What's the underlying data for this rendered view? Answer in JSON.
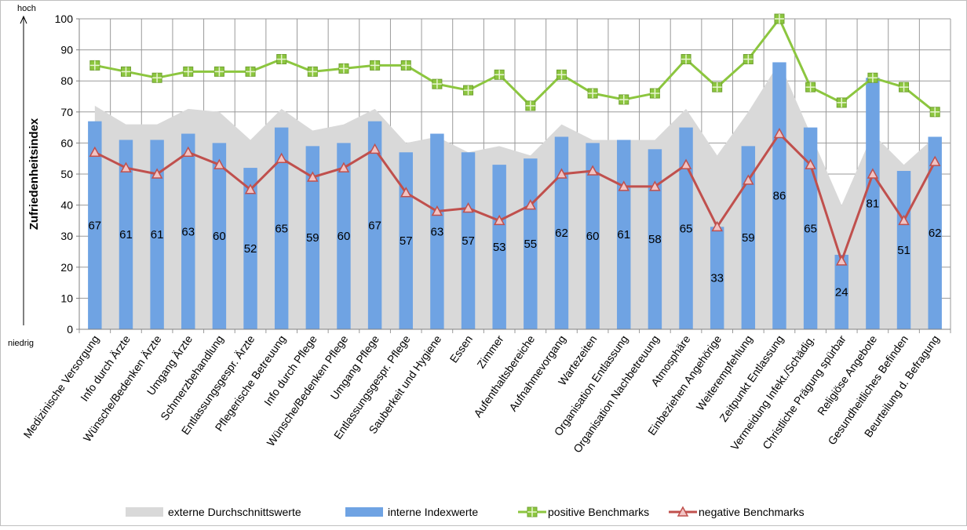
{
  "chart_data": {
    "type": "bar",
    "y_label": "Zufriedenheitsindex",
    "axis_top_label": "hoch",
    "axis_bottom_label": "niedrig",
    "categories": [
      "Medizinische Versorgung",
      "Info durch Ärzte",
      "Wünsche/Bedenken Ärzte",
      "Umgang Ärzte",
      "Schmerzbehandlung",
      "Entlassungsgespr. Ärzte",
      "Pflegerische Betreuung",
      "Info durch Pflege",
      "Wünsche/Bedenken Pflege",
      "Umgang Pflege",
      "Entlassungsgespr. Pflege",
      "Sauberkeit und Hygiene",
      "Essen",
      "Zimmer",
      "Aufenthaltsbereiche",
      "Aufnahmevorgang",
      "Wartezeiten",
      "Organisation Entlassung",
      "Organisation Nachbetreuung",
      "Atmosphäre",
      "Einbeziehen Angehörige",
      "Weiterempfehlung",
      "Zeitpunkt Entlassung",
      "Vermeidung Infekt./Schädig.",
      "Christliche Prägung spürbar",
      "Religiöse Angebote",
      "Gesundheitliches Befinden",
      "Beurteilung d. Befragung"
    ],
    "series": [
      {
        "name": "externe Durchschnittswerte",
        "type": "area",
        "color": "#d9d9d9",
        "values": [
          72,
          66,
          66,
          71,
          70,
          61,
          71,
          64,
          66,
          71,
          60,
          62,
          57,
          59,
          56,
          66,
          61,
          61,
          61,
          71,
          56,
          70,
          86,
          63,
          40,
          63,
          53,
          62
        ]
      },
      {
        "name": "interne Indexwerte",
        "type": "bar",
        "color": "#6fa3e3",
        "data_labels": true,
        "values": [
          67,
          61,
          61,
          63,
          60,
          52,
          65,
          59,
          60,
          67,
          57,
          63,
          57,
          53,
          55,
          62,
          60,
          61,
          58,
          65,
          33,
          59,
          86,
          65,
          24,
          81,
          51,
          62
        ]
      },
      {
        "name": "positive Benchmarks",
        "type": "line",
        "color": "#8cc63f",
        "marker": "square",
        "values": [
          85,
          83,
          81,
          83,
          83,
          83,
          87,
          83,
          84,
          85,
          85,
          79,
          77,
          82,
          72,
          82,
          76,
          74,
          76,
          87,
          78,
          87,
          100,
          78,
          73,
          81,
          78,
          70
        ]
      },
      {
        "name": "negative Benchmarks",
        "type": "line",
        "color": "#c0504d",
        "marker": "triangle",
        "values": [
          57,
          52,
          50,
          57,
          53,
          45,
          55,
          49,
          52,
          58,
          44,
          38,
          39,
          35,
          40,
          50,
          51,
          46,
          46,
          53,
          33,
          48,
          63,
          53,
          22,
          50,
          35,
          54
        ]
      }
    ],
    "ylim": [
      0,
      100
    ],
    "yticks": [
      0,
      10,
      20,
      30,
      40,
      50,
      60,
      70,
      80,
      90,
      100
    ],
    "grid": true,
    "legend": "bottom"
  }
}
